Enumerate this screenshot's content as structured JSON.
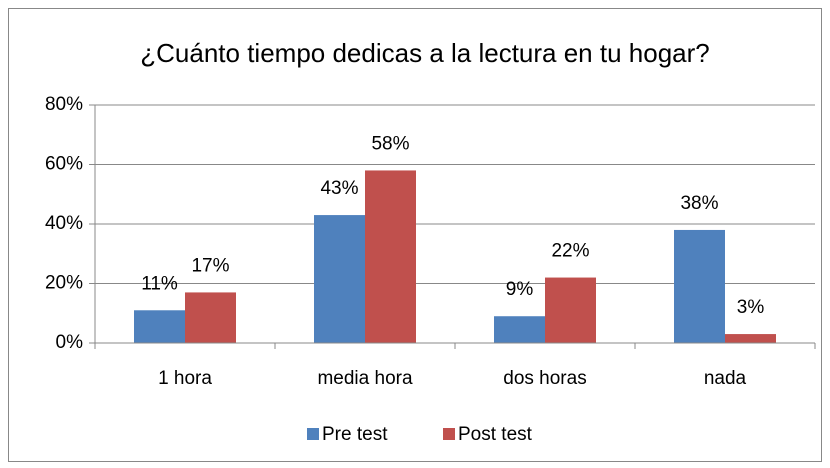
{
  "chart_data": {
    "type": "bar",
    "title": "¿Cuánto tiempo dedicas a la lectura en tu hogar?",
    "categories": [
      "1 hora",
      "media hora",
      "dos horas",
      "nada"
    ],
    "series": [
      {
        "name": "Pre test",
        "color": "#4f81bd",
        "values": [
          11,
          43,
          9,
          38
        ],
        "value_labels": [
          "11%",
          "43%",
          "9%",
          "38%"
        ]
      },
      {
        "name": "Post test",
        "color": "#c0504d",
        "values": [
          17,
          58,
          22,
          3
        ],
        "value_labels": [
          "17%",
          "58%",
          "22%",
          "3%"
        ]
      }
    ],
    "ylim": [
      0,
      80
    ],
    "yticks": [
      {
        "value": 0,
        "label": "0%"
      },
      {
        "value": 20,
        "label": "20%"
      },
      {
        "value": 40,
        "label": "40%"
      },
      {
        "value": 60,
        "label": "60%"
      },
      {
        "value": 80,
        "label": "80%"
      }
    ],
    "grid": true,
    "legend": "bottom"
  }
}
